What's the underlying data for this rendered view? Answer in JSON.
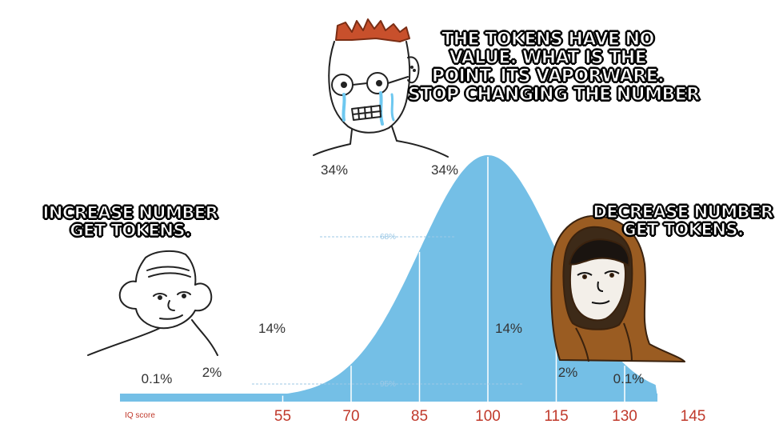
{
  "captions": {
    "top": [
      "THE TOKENS HAVE NO",
      "VALUE. WHAT IS THE",
      "POINT. ITS VAPORWARE.",
      "STOP CHANGING THE NUMBER"
    ],
    "left": [
      "INCREASE NUMBER",
      "GET TOKENS."
    ],
    "right": [
      "DECREASE NUMBER",
      "GET TOKENS."
    ]
  },
  "chart_data": {
    "type": "area",
    "xlabel": "IQ score",
    "x_ticks": [
      55,
      70,
      85,
      100,
      115,
      130,
      145
    ],
    "band_percentages": {
      "far_left": "0.1%",
      "left_tail": "2%",
      "left_mid": "14%",
      "left_center": "34%",
      "right_center": "34%",
      "right_mid": "14%",
      "right_tail": "2%",
      "far_right": "0.1%"
    },
    "inner_labels": {
      "one_sd": "68%",
      "two_sd": "95%"
    },
    "mean": 100,
    "sd": 15,
    "colors": {
      "curve_fill": "#74bfe6",
      "axis_text": "#c0392b"
    }
  },
  "characters": {
    "left": "wojak-brainlet",
    "center": "wojak-crying",
    "right": "wojak-hooded-monk"
  }
}
